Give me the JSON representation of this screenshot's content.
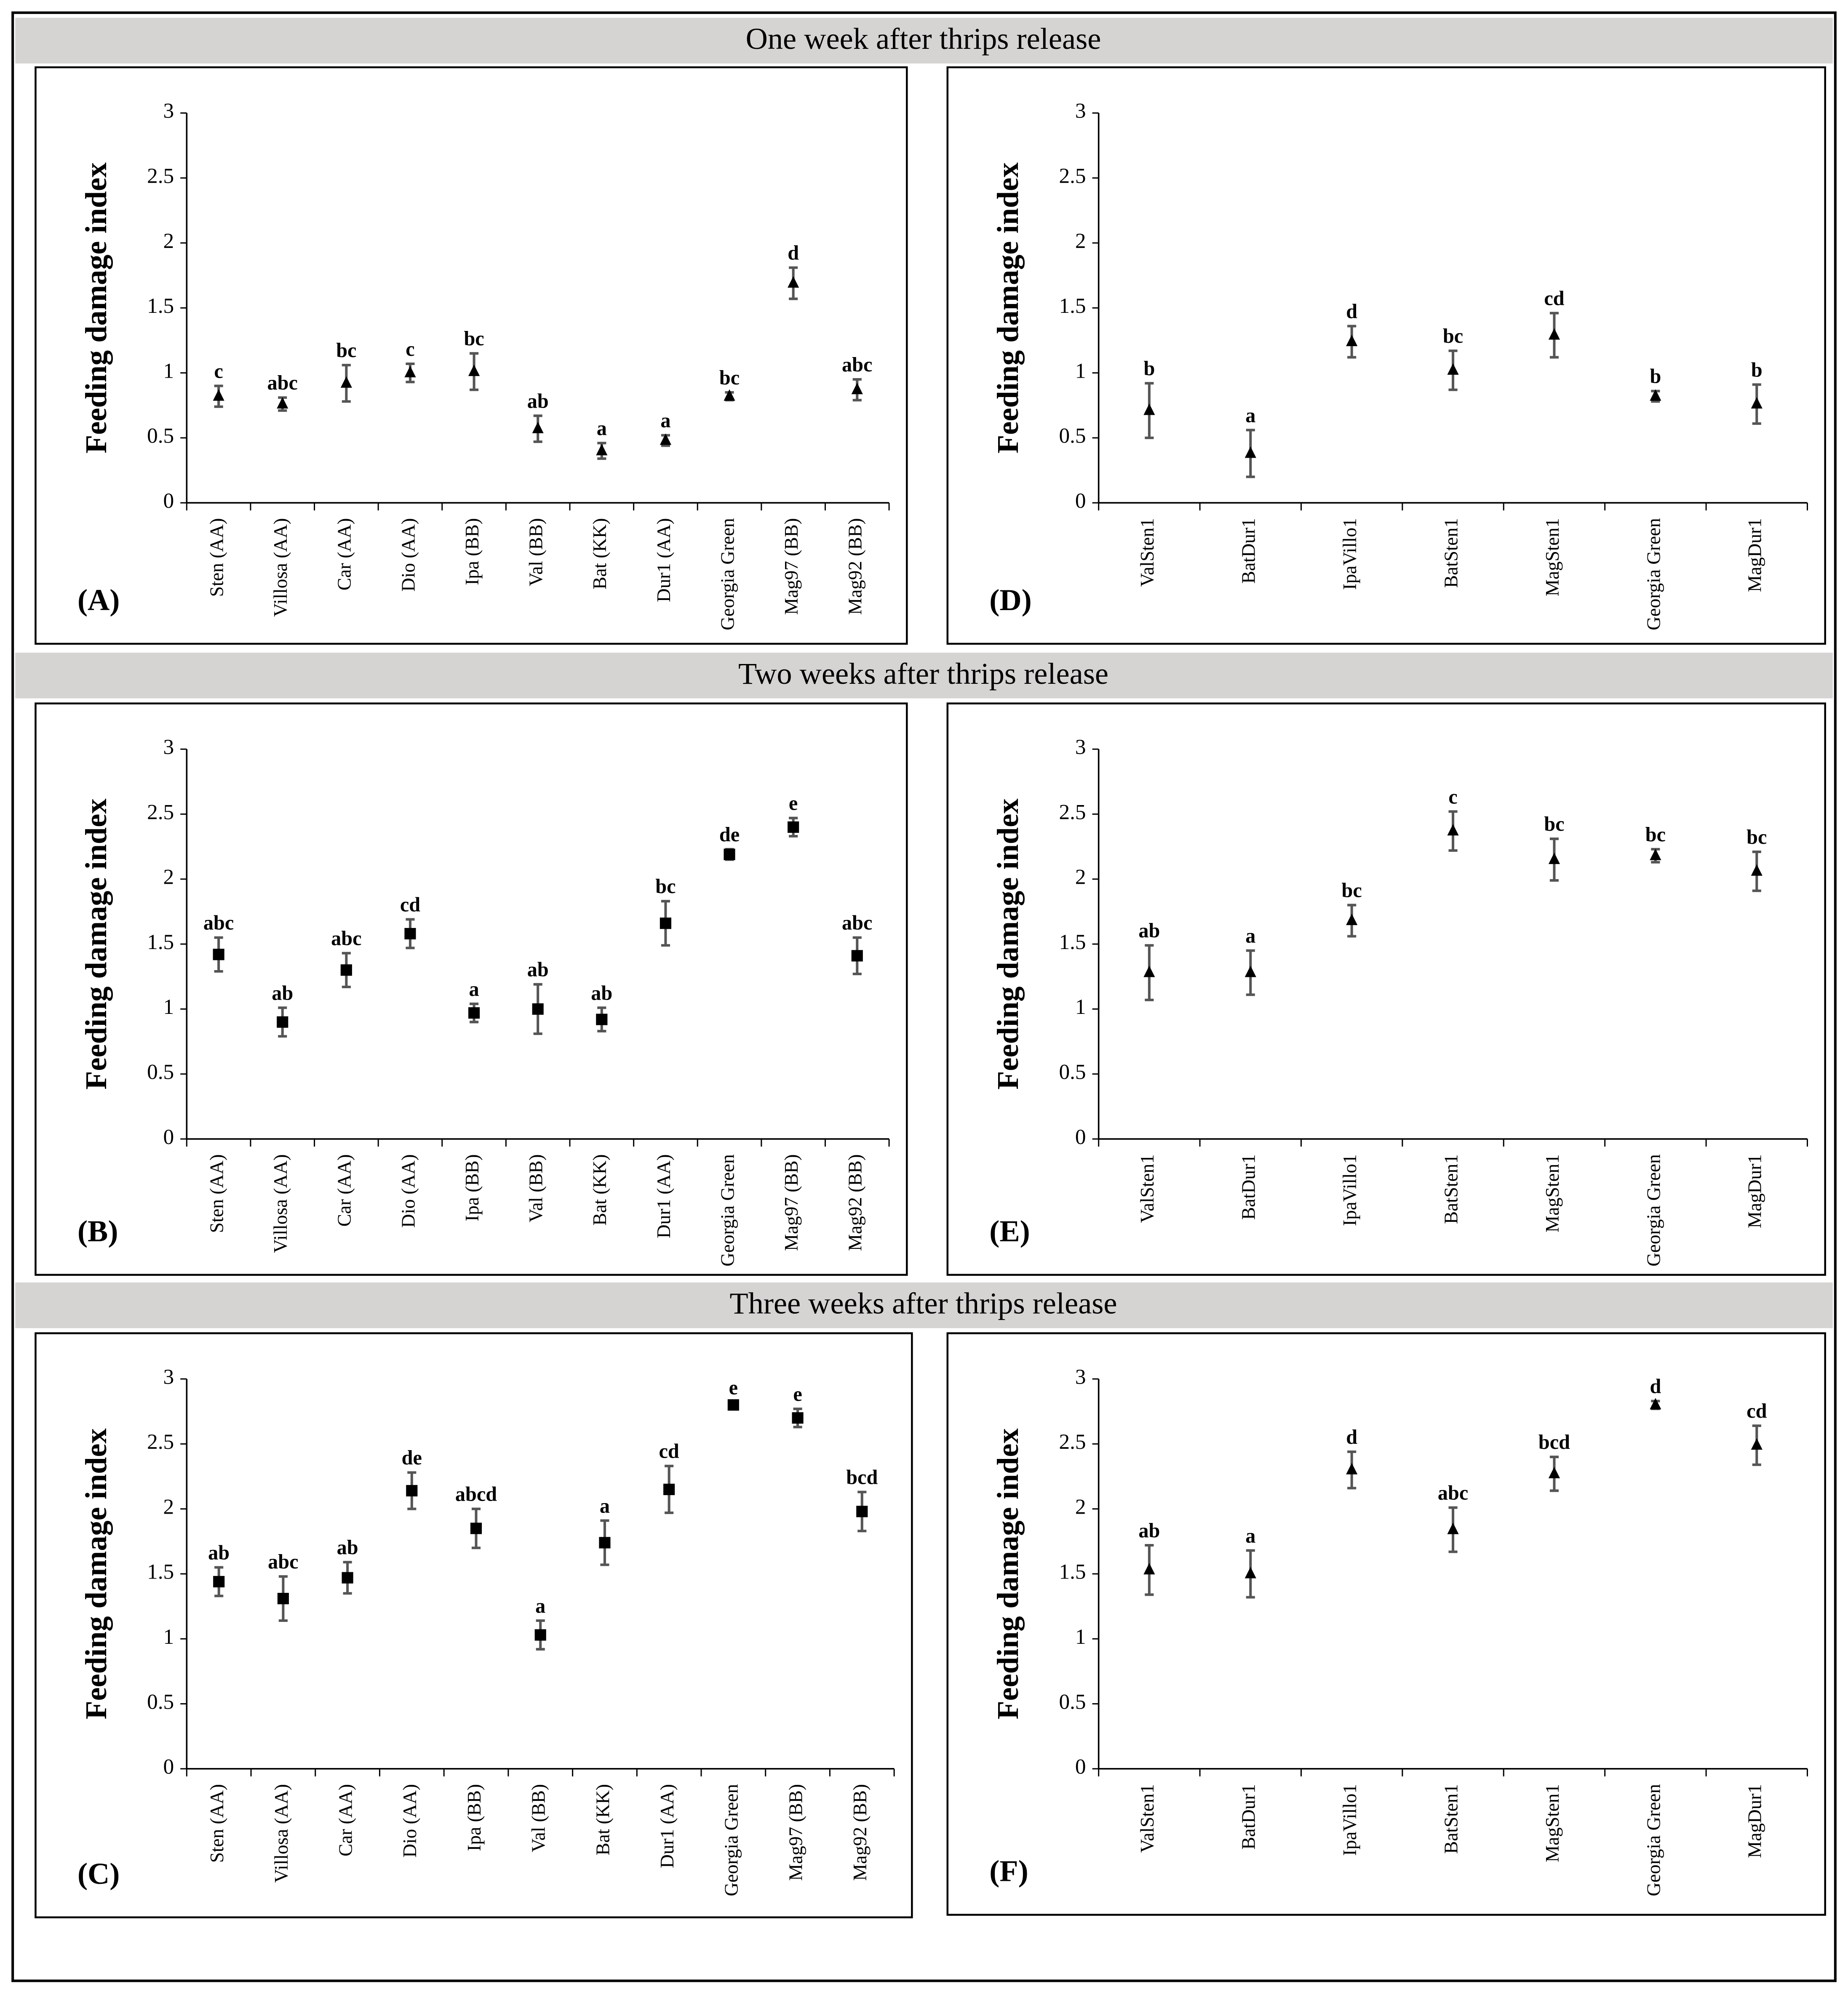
{
  "section_titles": [
    "One week after thrips release",
    "Two weeks after thrips release",
    "Three weeks after thrips release"
  ],
  "chart_data": [
    {
      "type": "errorbar",
      "panel_label": "(A)",
      "ylabel": "Feeding damage index",
      "marker": "triangle",
      "color": "#000000",
      "categories": [
        "Sten (AA)",
        "Villosa (AA)",
        "Car (AA)",
        "Dio (AA)",
        "Ipa (BB)",
        "Val (BB)",
        "Bat (KK)",
        "Dur1 (AA)",
        "Georgia Green",
        "Mag97 (BB)",
        "Mag92 (BB)"
      ],
      "values": [
        0.82,
        0.76,
        0.92,
        1.0,
        1.01,
        0.57,
        0.4,
        0.48,
        0.82,
        1.69,
        0.87
      ],
      "errors": [
        0.08,
        0.05,
        0.14,
        0.07,
        0.14,
        0.1,
        0.06,
        0.04,
        0.03,
        0.12,
        0.08
      ],
      "annotations": [
        "c",
        "abc",
        "bc",
        "c",
        "bc",
        "ab",
        "a",
        "a",
        "bc",
        "d",
        "abc"
      ],
      "ylim": [
        0,
        3
      ],
      "yticks": [
        0,
        0.5,
        1,
        1.5,
        2,
        2.5,
        3
      ]
    },
    {
      "type": "errorbar",
      "panel_label": "(D)",
      "ylabel": "Feeding damage index",
      "marker": "triangle",
      "color": "#000000",
      "categories": [
        "ValSten1",
        "BatDur1",
        "IpaVillo1",
        "BatSten1",
        "MagSten1",
        "Georgia Green",
        "MagDur1"
      ],
      "values": [
        0.71,
        0.38,
        1.24,
        1.02,
        1.29,
        0.82,
        0.76
      ],
      "errors": [
        0.21,
        0.18,
        0.12,
        0.15,
        0.17,
        0.04,
        0.15
      ],
      "annotations": [
        "b",
        "a",
        "d",
        "bc",
        "cd",
        "b",
        "b"
      ],
      "ylim": [
        0,
        3
      ],
      "yticks": [
        0,
        0.5,
        1,
        1.5,
        2,
        2.5,
        3
      ]
    },
    {
      "type": "errorbar",
      "panel_label": "(B)",
      "ylabel": "Feeding damage index",
      "marker": "square",
      "color": "#000000",
      "categories": [
        "Sten (AA)",
        "Villosa (AA)",
        "Car (AA)",
        "Dio (AA)",
        "Ipa (BB)",
        "Val (BB)",
        "Bat (KK)",
        "Dur1 (AA)",
        "Georgia Green",
        "Mag97 (BB)",
        "Mag92 (BB)"
      ],
      "values": [
        1.42,
        0.9,
        1.3,
        1.58,
        0.97,
        1.0,
        0.92,
        1.66,
        2.19,
        2.4,
        1.41
      ],
      "errors": [
        0.13,
        0.11,
        0.13,
        0.11,
        0.07,
        0.19,
        0.09,
        0.17,
        0.04,
        0.07,
        0.14
      ],
      "annotations": [
        "abc",
        "ab",
        "abc",
        "cd",
        "a",
        "ab",
        "ab",
        "bc",
        "de",
        "e",
        "abc"
      ],
      "ylim": [
        0,
        3
      ],
      "yticks": [
        0,
        0.5,
        1,
        1.5,
        2,
        2.5,
        3
      ]
    },
    {
      "type": "errorbar",
      "panel_label": "(E)",
      "ylabel": "Feeding damage index",
      "marker": "triangle",
      "color": "#000000",
      "categories": [
        "ValSten1",
        "BatDur1",
        "IpaVillo1",
        "BatSten1",
        "MagSten1",
        "Georgia Green",
        "MagDur1"
      ],
      "values": [
        1.28,
        1.28,
        1.68,
        2.37,
        2.15,
        2.18,
        2.06
      ],
      "errors": [
        0.21,
        0.17,
        0.12,
        0.15,
        0.16,
        0.05,
        0.15
      ],
      "annotations": [
        "ab",
        "a",
        "bc",
        "c",
        "bc",
        "bc",
        "bc"
      ],
      "ylim": [
        0,
        3
      ],
      "yticks": [
        0,
        0.5,
        1,
        1.5,
        2,
        2.5,
        3
      ]
    },
    {
      "type": "errorbar",
      "panel_label": "(C)",
      "ylabel": "Feeding damage index",
      "marker": "square",
      "color": "#000000",
      "categories": [
        "Sten (AA)",
        "Villosa (AA)",
        "Car (AA)",
        "Dio (AA)",
        "Ipa (BB)",
        "Val (BB)",
        "Bat (KK)",
        "Dur1 (AA)",
        "Georgia Green",
        "Mag97 (BB)",
        "Mag92 (BB)"
      ],
      "values": [
        1.44,
        1.31,
        1.47,
        2.14,
        1.85,
        1.03,
        1.74,
        2.15,
        2.8,
        2.7,
        1.98
      ],
      "errors": [
        0.11,
        0.17,
        0.12,
        0.14,
        0.15,
        0.11,
        0.17,
        0.18,
        0.02,
        0.07,
        0.15
      ],
      "annotations": [
        "ab",
        "abc",
        "ab",
        "de",
        "abcd",
        "a",
        "a",
        "cd",
        "e",
        "e",
        "bcd"
      ],
      "ylim": [
        0,
        3
      ],
      "yticks": [
        0,
        0.5,
        1,
        1.5,
        2,
        2.5,
        3
      ]
    },
    {
      "type": "errorbar",
      "panel_label": "(F)",
      "ylabel": "Feeding damage index",
      "marker": "triangle",
      "color": "#000000",
      "categories": [
        "ValSten1",
        "BatDur1",
        "IpaVillo1",
        "BatSten1",
        "MagSten1",
        "Georgia Green",
        "MagDur1"
      ],
      "values": [
        1.53,
        1.5,
        2.3,
        1.84,
        2.27,
        2.8,
        2.49
      ],
      "errors": [
        0.19,
        0.18,
        0.14,
        0.17,
        0.13,
        0.03,
        0.15
      ],
      "annotations": [
        "ab",
        "a",
        "d",
        "abc",
        "bcd",
        "d",
        "cd"
      ],
      "ylim": [
        0,
        3
      ],
      "yticks": [
        0,
        0.5,
        1,
        1.5,
        2,
        2.5,
        3
      ]
    }
  ]
}
